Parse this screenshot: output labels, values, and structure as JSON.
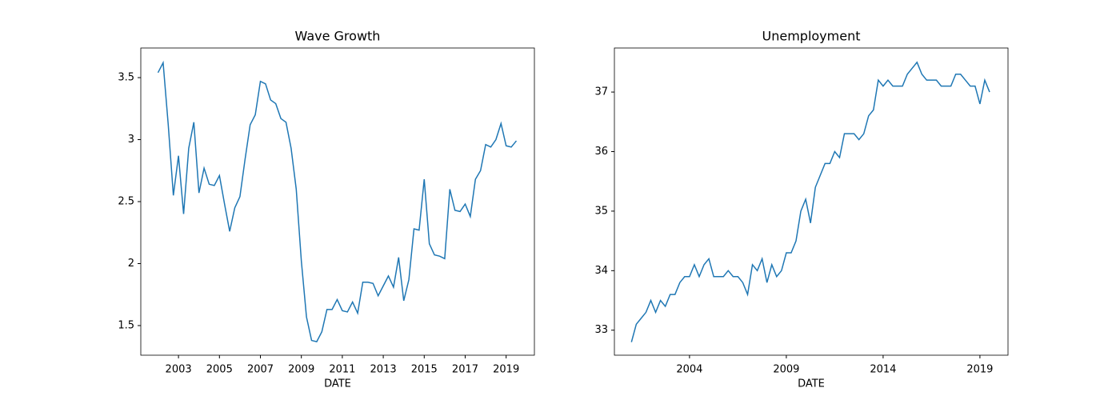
{
  "chart_data": [
    {
      "type": "line",
      "title": "Wave Growth",
      "x_label": "DATE",
      "x": [
        2002.0,
        2002.25,
        2002.5,
        2002.75,
        2003.0,
        2003.25,
        2003.5,
        2003.75,
        2004.0,
        2004.25,
        2004.5,
        2004.75,
        2005.0,
        2005.25,
        2005.5,
        2005.75,
        2006.0,
        2006.25,
        2006.5,
        2006.75,
        2007.0,
        2007.25,
        2007.5,
        2007.75,
        2008.0,
        2008.25,
        2008.5,
        2008.75,
        2009.0,
        2009.25,
        2009.5,
        2009.75,
        2010.0,
        2010.25,
        2010.5,
        2010.75,
        2011.0,
        2011.25,
        2011.5,
        2011.75,
        2012.0,
        2012.25,
        2012.5,
        2012.75,
        2013.0,
        2013.25,
        2013.5,
        2013.75,
        2014.0,
        2014.25,
        2014.5,
        2014.75,
        2015.0,
        2015.25,
        2015.5,
        2015.75,
        2016.0,
        2016.25,
        2016.5,
        2016.75,
        2017.0,
        2017.25,
        2017.5,
        2017.75,
        2018.0,
        2018.25,
        2018.5,
        2018.75,
        2019.0,
        2019.25,
        2019.5
      ],
      "series": [
        {
          "color": "#1f77b4",
          "values": [
            3.54,
            3.62,
            3.12,
            2.55,
            2.87,
            2.4,
            2.93,
            3.14,
            2.57,
            2.77,
            2.64,
            2.63,
            2.71,
            2.48,
            2.26,
            2.45,
            2.54,
            2.84,
            3.12,
            3.2,
            3.47,
            3.45,
            3.32,
            3.29,
            3.17,
            3.14,
            2.93,
            2.6,
            2.02,
            1.57,
            1.38,
            1.37,
            1.45,
            1.63,
            1.63,
            1.71,
            1.62,
            1.61,
            1.69,
            1.6,
            1.85,
            1.85,
            1.84,
            1.74,
            1.82,
            1.9,
            1.81,
            2.05,
            1.7,
            1.87,
            2.28,
            2.27,
            2.68,
            2.16,
            2.07,
            2.06,
            2.04,
            2.6,
            2.43,
            2.42,
            2.48,
            2.38,
            2.68,
            2.75,
            2.96,
            2.94,
            3.0,
            3.13,
            2.95,
            2.94,
            2.99
          ]
        }
      ],
      "xlim": [
        2001.16,
        2020.38
      ],
      "xticks": [
        2003,
        2005,
        2007,
        2009,
        2011,
        2013,
        2015,
        2017,
        2019
      ],
      "ylim": [
        1.261,
        3.739
      ],
      "yticks": [
        1.5,
        2.0,
        2.5,
        3.0,
        3.5
      ]
    },
    {
      "type": "line",
      "title": "Unemployment",
      "x_label": "DATE",
      "x": [
        2001.0,
        2001.25,
        2001.5,
        2001.75,
        2002.0,
        2002.25,
        2002.5,
        2002.75,
        2003.0,
        2003.25,
        2003.5,
        2003.75,
        2004.0,
        2004.25,
        2004.5,
        2004.75,
        2005.0,
        2005.25,
        2005.5,
        2005.75,
        2006.0,
        2006.25,
        2006.5,
        2006.75,
        2007.0,
        2007.25,
        2007.5,
        2007.75,
        2008.0,
        2008.25,
        2008.5,
        2008.75,
        2009.0,
        2009.25,
        2009.5,
        2009.75,
        2010.0,
        2010.25,
        2010.5,
        2010.75,
        2011.0,
        2011.25,
        2011.5,
        2011.75,
        2012.0,
        2012.25,
        2012.5,
        2012.75,
        2013.0,
        2013.25,
        2013.5,
        2013.75,
        2014.0,
        2014.25,
        2014.5,
        2014.75,
        2015.0,
        2015.25,
        2015.5,
        2015.75,
        2016.0,
        2016.25,
        2016.5,
        2016.75,
        2017.0,
        2017.25,
        2017.5,
        2017.75,
        2018.0,
        2018.25,
        2018.5,
        2018.75,
        2019.0,
        2019.25,
        2019.5
      ],
      "series": [
        {
          "color": "#1f77b4",
          "values": [
            32.8,
            33.1,
            33.2,
            33.3,
            33.5,
            33.3,
            33.5,
            33.4,
            33.6,
            33.6,
            33.8,
            33.9,
            33.9,
            34.1,
            33.9,
            34.1,
            34.2,
            33.9,
            33.9,
            33.9,
            34.0,
            33.9,
            33.9,
            33.8,
            33.6,
            34.1,
            34.0,
            34.2,
            33.8,
            34.1,
            33.9,
            34.0,
            34.3,
            34.3,
            34.5,
            35.0,
            35.2,
            34.8,
            35.4,
            35.6,
            35.8,
            35.8,
            36.0,
            35.9,
            36.3,
            36.3,
            36.3,
            36.2,
            36.3,
            36.6,
            36.7,
            37.2,
            37.1,
            37.2,
            37.1,
            37.1,
            37.1,
            37.3,
            37.4,
            37.5,
            37.3,
            37.2,
            37.2,
            37.2,
            37.1,
            37.1,
            37.1,
            37.3,
            37.3,
            37.2,
            37.1,
            37.1,
            36.8,
            37.2,
            37.0
          ]
        }
      ],
      "xlim": [
        2000.12,
        2020.45
      ],
      "xticks": [
        2004,
        2009,
        2014,
        2019
      ],
      "ylim": [
        32.58,
        37.74
      ],
      "yticks": [
        33,
        34,
        35,
        36,
        37
      ]
    }
  ]
}
